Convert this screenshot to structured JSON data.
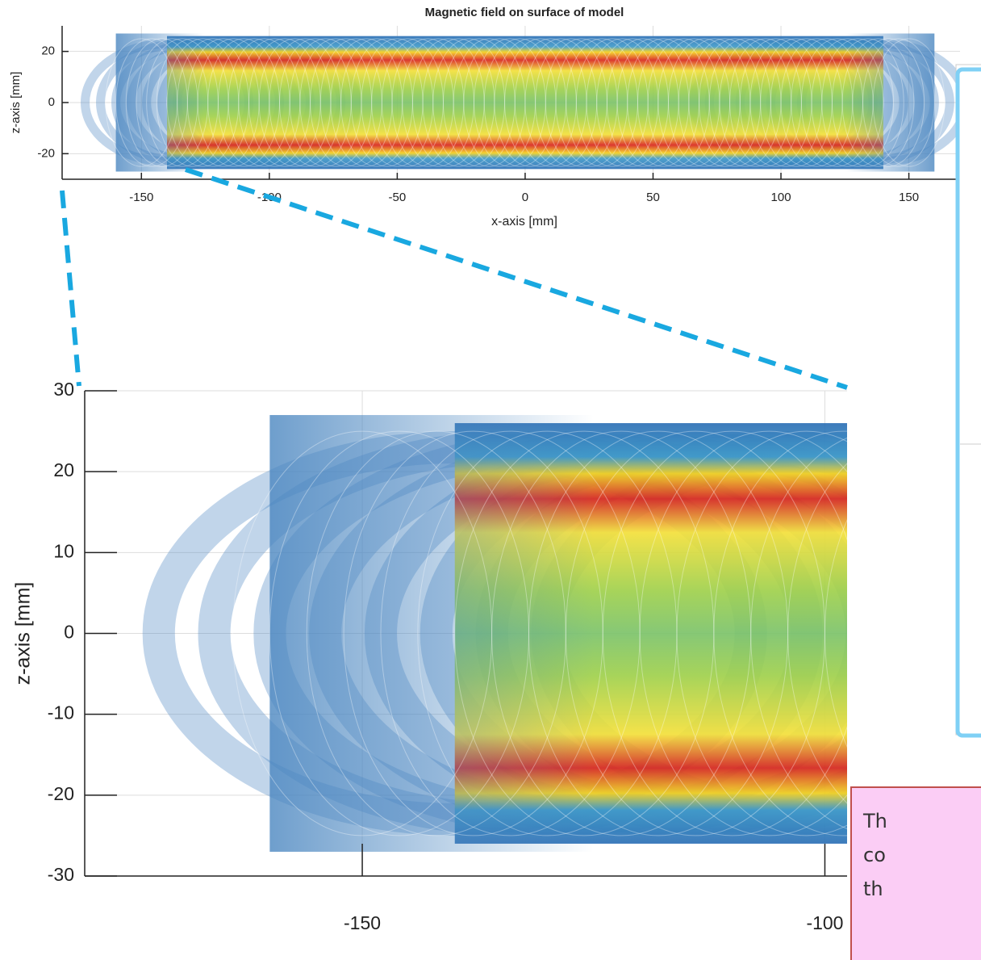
{
  "chart_data": [
    {
      "type": "surface",
      "title": "Magnetic field on surface of model",
      "x_label": "x-axis [mm]",
      "y_label": "z-axis [mm]",
      "xlim": [
        -181,
        170
      ],
      "xticks": [
        -150,
        -100,
        -50,
        0,
        50,
        100,
        150
      ],
      "ylim": [
        -30,
        30
      ],
      "yticks": [
        -20,
        0,
        20
      ],
      "grid": true
    },
    {
      "type": "surface",
      "y_label": "z-axis [mm]",
      "xlim": [
        -180,
        -97.6
      ],
      "xticks": [
        -150,
        -100
      ],
      "ylim": [
        -30,
        30
      ],
      "yticks": [
        -30,
        -20,
        -10,
        0,
        10,
        20,
        30
      ],
      "grid": true
    }
  ],
  "callout": {
    "lines": [
      "Th",
      "co",
      "th"
    ]
  }
}
